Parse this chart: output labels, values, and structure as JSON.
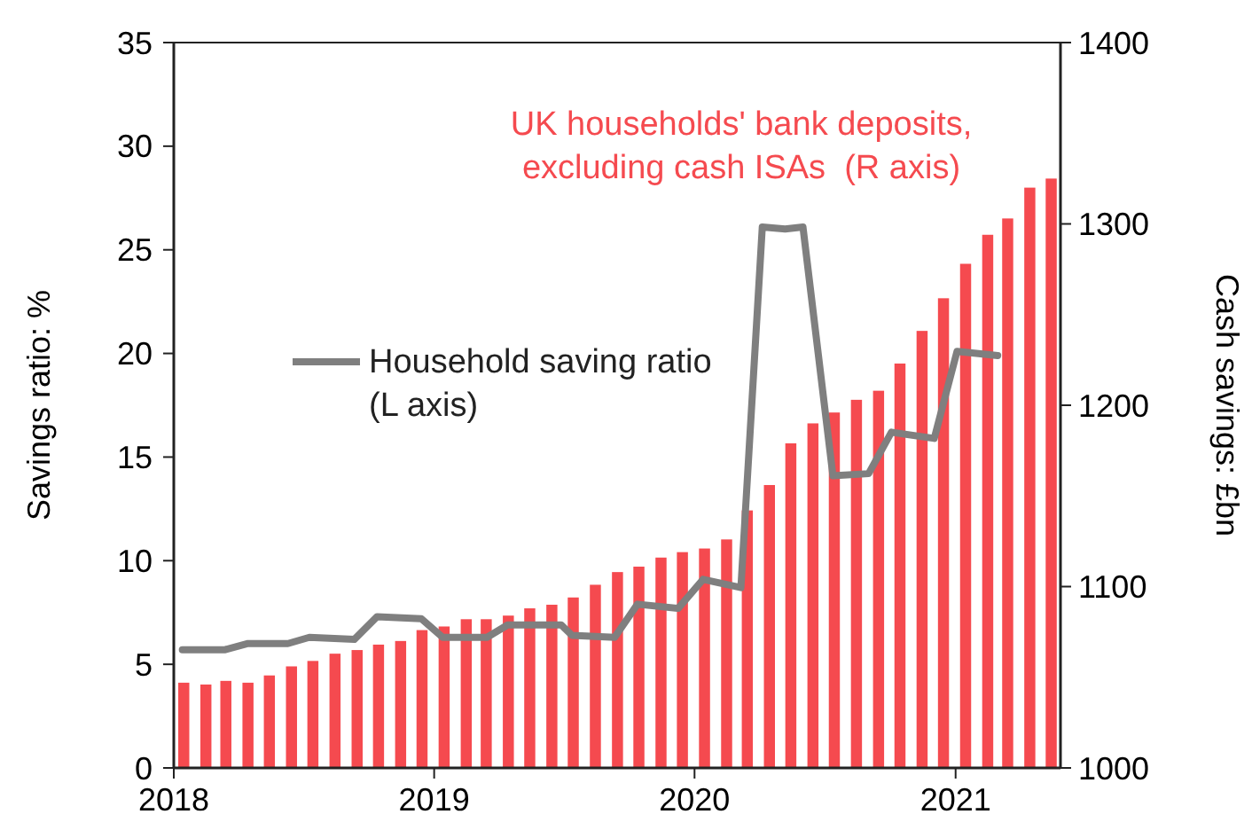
{
  "chart_data": {
    "type": "bar",
    "ylabel": "Savings ratio:  %",
    "y2label": "Cash savings:  £bn",
    "xlim": [
      "2018-01-01",
      "2021-05-28"
    ],
    "xticks": [
      "2018",
      "2019",
      "2020",
      "2021"
    ],
    "ylim": [
      0,
      35
    ],
    "yticks": [
      0,
      5,
      10,
      15,
      20,
      25,
      30,
      35
    ],
    "y2lim": [
      1000,
      1400
    ],
    "y2ticks": [
      1000,
      1100,
      1200,
      1300,
      1400
    ],
    "x": [
      "2018-01-15",
      "2018-02-15",
      "2018-03-15",
      "2018-04-15",
      "2018-05-15",
      "2018-06-15",
      "2018-07-15",
      "2018-08-15",
      "2018-09-15",
      "2018-10-15",
      "2018-11-15",
      "2018-12-15",
      "2019-01-15",
      "2019-02-15",
      "2019-03-15",
      "2019-04-15",
      "2019-05-15",
      "2019-06-15",
      "2019-07-15",
      "2019-08-15",
      "2019-09-15",
      "2019-10-15",
      "2019-11-15",
      "2019-12-15",
      "2020-01-15",
      "2020-02-15",
      "2020-03-15",
      "2020-04-15",
      "2020-05-15",
      "2020-06-15",
      "2020-07-15",
      "2020-08-15",
      "2020-09-15",
      "2020-10-15",
      "2020-11-15",
      "2020-12-15",
      "2021-01-15",
      "2021-02-15",
      "2021-03-15",
      "2021-04-15",
      "2021-05-15"
    ],
    "series": [
      {
        "name": "UK households' bank deposits,\nexcluding cash ISAs  (R axis)",
        "axis": "y2",
        "color": "#f54a4f",
        "values": [
          1047,
          1046,
          1048,
          1047,
          1051,
          1056,
          1059,
          1063,
          1065,
          1068,
          1070,
          1076,
          1078,
          1082,
          1082,
          1084,
          1088,
          1090,
          1094,
          1101,
          1108,
          1111,
          1116,
          1119,
          1121,
          1126,
          1142,
          1156,
          1179,
          1190,
          1196,
          1203,
          1208,
          1223,
          1241,
          1259,
          1278,
          1294,
          1303,
          1320,
          1325
        ]
      },
      {
        "name": "Household saving ratio\n(L axis)",
        "type": "line",
        "axis": "y",
        "color": "#7f7f7f",
        "x": [
          "2018-01-13",
          "2018-03-13",
          "2018-04-14",
          "2018-06-10",
          "2018-07-10",
          "2018-09-11",
          "2018-10-13",
          "2018-12-14",
          "2019-01-13",
          "2019-03-16",
          "2019-04-14",
          "2019-06-28",
          "2019-07-13",
          "2019-09-11",
          "2019-10-13",
          "2019-12-09",
          "2020-01-13",
          "2020-03-06",
          "2020-04-05",
          "2020-05-07",
          "2020-06-01",
          "2020-07-13",
          "2020-09-01",
          "2020-10-03",
          "2020-12-02",
          "2021-01-03",
          "2021-03-01"
        ],
        "values": [
          5.7,
          5.7,
          6.0,
          6.0,
          6.3,
          6.2,
          7.3,
          7.2,
          6.3,
          6.3,
          6.9,
          6.9,
          6.4,
          6.3,
          7.9,
          7.7,
          9.1,
          8.7,
          26.1,
          26.0,
          26.1,
          14.1,
          14.2,
          16.2,
          15.9,
          20.1,
          19.9
        ]
      }
    ]
  }
}
